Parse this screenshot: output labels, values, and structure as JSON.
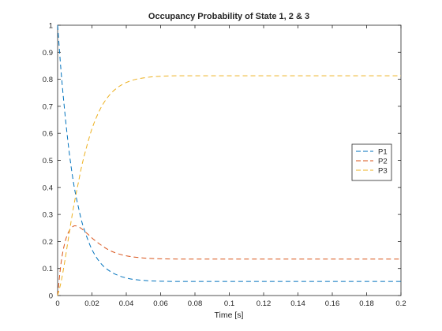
{
  "chart_data": {
    "type": "line",
    "title": "Occupancy Probability of State 1, 2 & 3",
    "xlabel": "Time [s]",
    "ylabel": "",
    "xlim": [
      0,
      0.2
    ],
    "ylim": [
      0,
      1
    ],
    "x_ticks": [
      "0",
      "0.02",
      "0.04",
      "0.06",
      "0.08",
      "0.1",
      "0.12",
      "0.14",
      "0.16",
      "0.18",
      "0.2"
    ],
    "y_ticks": [
      "0",
      "0.1",
      "0.2",
      "0.3",
      "0.4",
      "0.5",
      "0.6",
      "0.7",
      "0.8",
      "0.9",
      "1"
    ],
    "grid": false,
    "legend_position": "right",
    "line_style": "dashed",
    "x": [
      0,
      0.002,
      0.004,
      0.006,
      0.008,
      0.01,
      0.012,
      0.014,
      0.016,
      0.018,
      0.02,
      0.025,
      0.03,
      0.035,
      0.04,
      0.045,
      0.05,
      0.055,
      0.06,
      0.07,
      0.08,
      0.1,
      0.12,
      0.14,
      0.16,
      0.18,
      0.2
    ],
    "series": [
      {
        "name": "P1",
        "color": "#0072BD",
        "values": [
          1.0,
          0.83,
          0.69,
          0.57,
          0.47,
          0.39,
          0.33,
          0.275,
          0.235,
          0.2,
          0.17,
          0.12,
          0.092,
          0.075,
          0.065,
          0.059,
          0.056,
          0.054,
          0.053,
          0.052,
          0.052,
          0.052,
          0.052,
          0.052,
          0.052,
          0.052,
          0.052
        ]
      },
      {
        "name": "P2",
        "color": "#D95319",
        "values": [
          0.0,
          0.12,
          0.19,
          0.23,
          0.25,
          0.258,
          0.255,
          0.247,
          0.236,
          0.225,
          0.213,
          0.188,
          0.168,
          0.155,
          0.147,
          0.142,
          0.139,
          0.137,
          0.136,
          0.135,
          0.135,
          0.135,
          0.135,
          0.135,
          0.135,
          0.135,
          0.135
        ]
      },
      {
        "name": "P3",
        "color": "#EDB120",
        "values": [
          0.0,
          0.05,
          0.12,
          0.2,
          0.28,
          0.352,
          0.415,
          0.478,
          0.529,
          0.575,
          0.617,
          0.692,
          0.74,
          0.77,
          0.788,
          0.799,
          0.805,
          0.809,
          0.811,
          0.813,
          0.813,
          0.813,
          0.813,
          0.813,
          0.813,
          0.813,
          0.813
        ]
      }
    ]
  }
}
